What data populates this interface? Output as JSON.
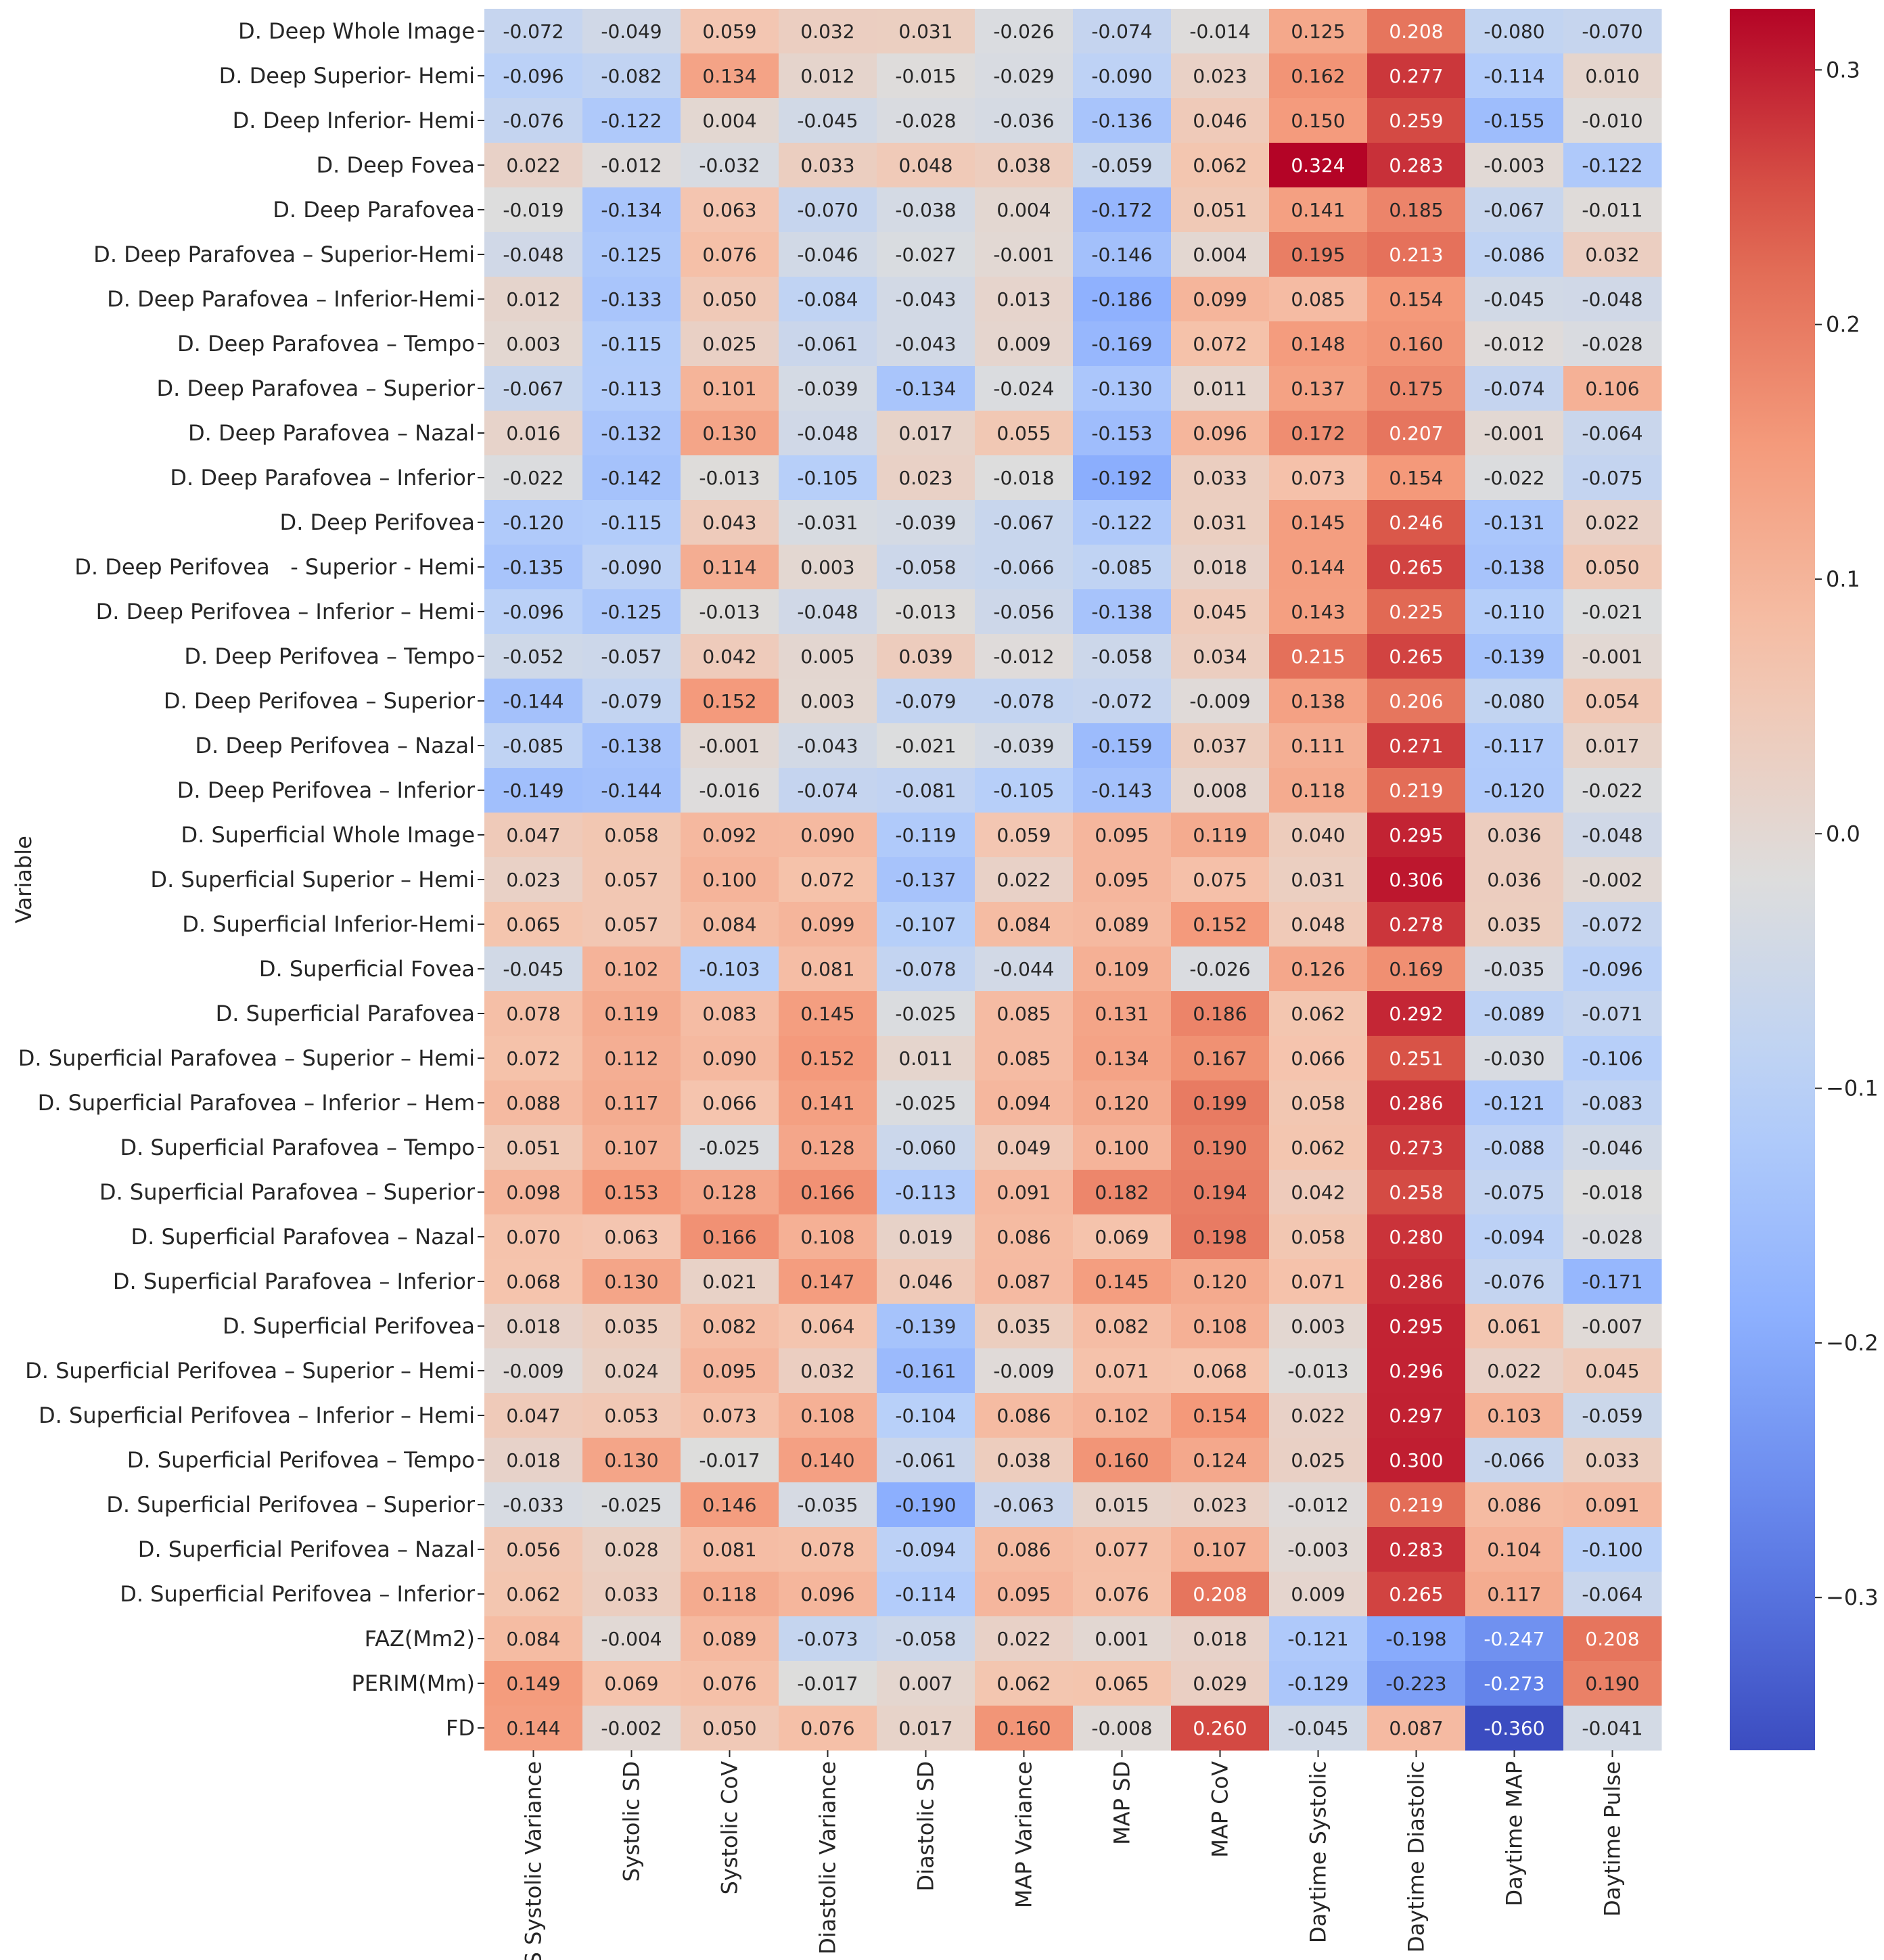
{
  "chart_data": {
    "type": "heatmap",
    "ylabel": "Variable",
    "colormap": "coolwarm",
    "color_range": [
      -0.36,
      0.324
    ],
    "colors": {
      "low": "#3b4cc0",
      "mid": "#dddddd",
      "high": "#b40426",
      "text_dark": "#262626",
      "text_light": "#ffffff",
      "tick": "#262626"
    },
    "colorbar_ticks": [
      0.3,
      0.2,
      0.1,
      0.0,
      -0.1,
      -0.2,
      -0.3
    ],
    "colorbar_tick_labels": [
      "0.3",
      "0.2",
      "0.1",
      "0.0",
      "−0.1",
      "−0.2",
      "−0.3"
    ],
    "columns": [
      "CVS Systolic Variance",
      "Systolic SD",
      "Systolic CoV",
      "Diastolic Variance",
      "Diastolic SD",
      "MAP Variance",
      "MAP SD",
      "MAP CoV",
      "Daytime Systolic",
      "Daytime Diastolic",
      "Daytime MAP",
      "Daytime Pulse"
    ],
    "rows": [
      "D. Deep Whole Image",
      "D. Deep Superior- Hemi",
      "D. Deep Inferior- Hemi",
      "D. Deep Fovea",
      "D. Deep Parafovea",
      "D. Deep Parafovea – Superior-Hemi",
      "D. Deep Parafovea – Inferior-Hemi",
      "D. Deep Parafovea – Tempo",
      "D. Deep Parafovea – Superior",
      "D. Deep Parafovea – Nazal",
      "D. Deep Parafovea – Inferior",
      "D. Deep Perifovea",
      "D. Deep Perifovea   - Superior - Hemi",
      "D. Deep Perifovea – Inferior – Hemi",
      "D. Deep Perifovea – Tempo",
      "D. Deep Perifovea – Superior",
      "D. Deep Perifovea – Nazal",
      "D. Deep Perifovea – Inferior",
      "D. Superficial Whole Image",
      "D. Superficial Superior – Hemi",
      "D. Superficial Inferior-Hemi",
      "D. Superficial Fovea",
      "D. Superficial Parafovea",
      "D. Superficial Parafovea – Superior – Hemi",
      "D. Superficial Parafovea – Inferior – Hem",
      "D. Superficial Parafovea – Tempo",
      "D. Superficial Parafovea – Superior",
      "D. Superficial Parafovea – Nazal",
      "D. Superficial Parafovea – Inferior",
      "D. Superficial Perifovea",
      "D. Superficial Perifovea – Superior – Hemi",
      "D. Superficial Perifovea – Inferior – Hemi",
      "D. Superficial Perifovea – Tempo",
      "D. Superficial Perifovea – Superior",
      "D. Superficial Perifovea – Nazal",
      "D. Superficial Perifovea – Inferior",
      "FAZ(Mm2)",
      "PERIM(Mm)",
      "FD"
    ],
    "values": [
      [
        -0.072,
        -0.049,
        0.059,
        0.032,
        0.031,
        -0.026,
        -0.074,
        -0.014,
        0.125,
        0.208,
        -0.08,
        -0.07
      ],
      [
        -0.096,
        -0.082,
        0.134,
        0.012,
        -0.015,
        -0.029,
        -0.09,
        0.023,
        0.162,
        0.277,
        -0.114,
        0.01
      ],
      [
        -0.076,
        -0.122,
        0.004,
        -0.045,
        -0.028,
        -0.036,
        -0.136,
        0.046,
        0.15,
        0.259,
        -0.155,
        -0.01
      ],
      [
        0.022,
        -0.012,
        -0.032,
        0.033,
        0.048,
        0.038,
        -0.059,
        0.062,
        0.324,
        0.283,
        -0.003,
        -0.122
      ],
      [
        -0.019,
        -0.134,
        0.063,
        -0.07,
        -0.038,
        0.004,
        -0.172,
        0.051,
        0.141,
        0.185,
        -0.067,
        -0.011
      ],
      [
        -0.048,
        -0.125,
        0.076,
        -0.046,
        -0.027,
        -0.001,
        -0.146,
        0.004,
        0.195,
        0.213,
        -0.086,
        0.032
      ],
      [
        0.012,
        -0.133,
        0.05,
        -0.084,
        -0.043,
        0.013,
        -0.186,
        0.099,
        0.085,
        0.154,
        -0.045,
        -0.048
      ],
      [
        0.003,
        -0.115,
        0.025,
        -0.061,
        -0.043,
        0.009,
        -0.169,
        0.072,
        0.148,
        0.16,
        -0.012,
        -0.028
      ],
      [
        -0.067,
        -0.113,
        0.101,
        -0.039,
        -0.134,
        -0.024,
        -0.13,
        0.011,
        0.137,
        0.175,
        -0.074,
        0.106
      ],
      [
        0.016,
        -0.132,
        0.13,
        -0.048,
        0.017,
        0.055,
        -0.153,
        0.096,
        0.172,
        0.207,
        -0.001,
        -0.064
      ],
      [
        -0.022,
        -0.142,
        -0.013,
        -0.105,
        0.023,
        -0.018,
        -0.192,
        0.033,
        0.073,
        0.154,
        -0.022,
        -0.075
      ],
      [
        -0.12,
        -0.115,
        0.043,
        -0.031,
        -0.039,
        -0.067,
        -0.122,
        0.031,
        0.145,
        0.246,
        -0.131,
        0.022
      ],
      [
        -0.135,
        -0.09,
        0.114,
        0.003,
        -0.058,
        -0.066,
        -0.085,
        0.018,
        0.144,
        0.265,
        -0.138,
        0.05
      ],
      [
        -0.096,
        -0.125,
        -0.013,
        -0.048,
        -0.013,
        -0.056,
        -0.138,
        0.045,
        0.143,
        0.225,
        -0.11,
        -0.021
      ],
      [
        -0.052,
        -0.057,
        0.042,
        0.005,
        0.039,
        -0.012,
        -0.058,
        0.034,
        0.215,
        0.265,
        -0.139,
        -0.001
      ],
      [
        -0.144,
        -0.079,
        0.152,
        0.003,
        -0.079,
        -0.078,
        -0.072,
        -0.009,
        0.138,
        0.206,
        -0.08,
        0.054
      ],
      [
        -0.085,
        -0.138,
        -0.001,
        -0.043,
        -0.021,
        -0.039,
        -0.159,
        0.037,
        0.111,
        0.271,
        -0.117,
        0.017
      ],
      [
        -0.149,
        -0.144,
        -0.016,
        -0.074,
        -0.081,
        -0.105,
        -0.143,
        0.008,
        0.118,
        0.219,
        -0.12,
        -0.022
      ],
      [
        0.047,
        0.058,
        0.092,
        0.09,
        -0.119,
        0.059,
        0.095,
        0.119,
        0.04,
        0.295,
        0.036,
        -0.048
      ],
      [
        0.023,
        0.057,
        0.1,
        0.072,
        -0.137,
        0.022,
        0.095,
        0.075,
        0.031,
        0.306,
        0.036,
        -0.002
      ],
      [
        0.065,
        0.057,
        0.084,
        0.099,
        -0.107,
        0.084,
        0.089,
        0.152,
        0.048,
        0.278,
        0.035,
        -0.072
      ],
      [
        -0.045,
        0.102,
        -0.103,
        0.081,
        -0.078,
        -0.044,
        0.109,
        -0.026,
        0.126,
        0.169,
        -0.035,
        -0.096
      ],
      [
        0.078,
        0.119,
        0.083,
        0.145,
        -0.025,
        0.085,
        0.131,
        0.186,
        0.062,
        0.292,
        -0.089,
        -0.071
      ],
      [
        0.072,
        0.112,
        0.09,
        0.152,
        0.011,
        0.085,
        0.134,
        0.167,
        0.066,
        0.251,
        -0.03,
        -0.106
      ],
      [
        0.088,
        0.117,
        0.066,
        0.141,
        -0.025,
        0.094,
        0.12,
        0.199,
        0.058,
        0.286,
        -0.121,
        -0.083
      ],
      [
        0.051,
        0.107,
        -0.025,
        0.128,
        -0.06,
        0.049,
        0.1,
        0.19,
        0.062,
        0.273,
        -0.088,
        -0.046
      ],
      [
        0.098,
        0.153,
        0.128,
        0.166,
        -0.113,
        0.091,
        0.182,
        0.194,
        0.042,
        0.258,
        -0.075,
        -0.018
      ],
      [
        0.07,
        0.063,
        0.166,
        0.108,
        0.019,
        0.086,
        0.069,
        0.198,
        0.058,
        0.28,
        -0.094,
        -0.028
      ],
      [
        0.068,
        0.13,
        0.021,
        0.147,
        0.046,
        0.087,
        0.145,
        0.12,
        0.071,
        0.286,
        -0.076,
        -0.171
      ],
      [
        0.018,
        0.035,
        0.082,
        0.064,
        -0.139,
        0.035,
        0.082,
        0.108,
        0.003,
        0.295,
        0.061,
        -0.007
      ],
      [
        -0.009,
        0.024,
        0.095,
        0.032,
        -0.161,
        -0.009,
        0.071,
        0.068,
        -0.013,
        0.296,
        0.022,
        0.045
      ],
      [
        0.047,
        0.053,
        0.073,
        0.108,
        -0.104,
        0.086,
        0.102,
        0.154,
        0.022,
        0.297,
        0.103,
        -0.059
      ],
      [
        0.018,
        0.13,
        -0.017,
        0.14,
        -0.061,
        0.038,
        0.16,
        0.124,
        0.025,
        0.3,
        -0.066,
        0.033
      ],
      [
        -0.033,
        -0.025,
        0.146,
        -0.035,
        -0.19,
        -0.063,
        0.015,
        0.023,
        -0.012,
        0.219,
        0.086,
        0.091
      ],
      [
        0.056,
        0.028,
        0.081,
        0.078,
        -0.094,
        0.086,
        0.077,
        0.107,
        -0.003,
        0.283,
        0.104,
        -0.1
      ],
      [
        0.062,
        0.033,
        0.118,
        0.096,
        -0.114,
        0.095,
        0.076,
        0.208,
        0.009,
        0.265,
        0.117,
        -0.064
      ],
      [
        0.084,
        -0.004,
        0.089,
        -0.073,
        -0.058,
        0.022,
        0.001,
        0.018,
        -0.121,
        -0.198,
        -0.247,
        0.208
      ],
      [
        0.149,
        0.069,
        0.076,
        -0.017,
        0.007,
        0.062,
        0.065,
        0.029,
        -0.129,
        -0.223,
        -0.273,
        0.19
      ],
      [
        0.144,
        -0.002,
        0.05,
        0.076,
        0.017,
        0.16,
        -0.008,
        0.26,
        -0.045,
        0.087,
        -0.36,
        -0.041
      ]
    ]
  }
}
